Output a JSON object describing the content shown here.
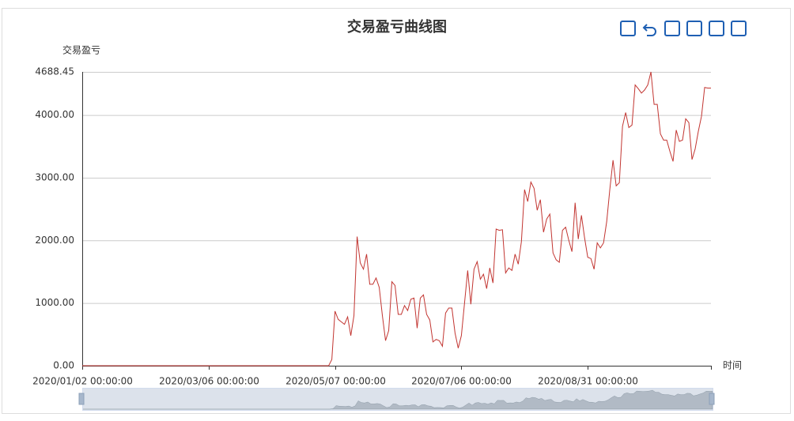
{
  "chart_data": {
    "type": "line",
    "title": "交易盈亏曲线图",
    "y_label": "交易盈亏",
    "x_label": "时间",
    "categories": [
      "2020/01/02 00:00:00",
      null,
      null,
      null,
      null,
      null,
      null,
      null,
      null,
      null,
      null,
      null,
      null,
      null,
      null,
      null,
      null,
      null,
      null,
      null,
      null,
      null,
      null,
      null,
      null,
      null,
      null,
      null,
      null,
      null,
      null,
      null,
      null,
      null,
      null,
      null,
      null,
      null,
      null,
      null,
      "2020/03/06 00:00:00",
      null,
      null,
      null,
      null,
      null,
      null,
      null,
      null,
      null,
      null,
      null,
      null,
      null,
      null,
      null,
      null,
      null,
      null,
      null,
      null,
      null,
      null,
      null,
      null,
      null,
      null,
      null,
      null,
      null,
      null,
      null,
      null,
      null,
      null,
      null,
      null,
      null,
      null,
      null,
      "2020/05/07 00:00:00",
      null,
      null,
      null,
      null,
      null,
      null,
      null,
      null,
      null,
      null,
      null,
      null,
      null,
      null,
      null,
      null,
      null,
      null,
      null,
      null,
      null,
      null,
      null,
      null,
      null,
      null,
      null,
      null,
      null,
      null,
      null,
      null,
      null,
      null,
      null,
      null,
      null,
      null,
      null,
      "2020/07/06 00:00:00",
      null,
      null,
      null,
      null,
      null,
      null,
      null,
      null,
      null,
      null,
      null,
      null,
      null,
      null,
      null,
      null,
      null,
      null,
      null,
      null,
      null,
      null,
      null,
      null,
      null,
      null,
      null,
      null,
      null,
      null,
      null,
      null,
      null,
      null,
      null,
      null,
      null,
      null,
      null,
      "2020/08/31 00:00:00",
      null,
      null,
      null,
      null,
      null,
      null,
      null,
      null,
      null,
      null,
      null,
      null,
      null,
      null,
      null,
      null,
      null,
      null,
      null,
      null,
      null,
      null,
      null,
      null,
      null,
      null,
      null,
      null,
      null,
      null,
      null,
      null,
      null,
      null,
      null,
      null,
      null,
      null,
      null
    ],
    "values": [
      0,
      0,
      0,
      0,
      0,
      0,
      0,
      0,
      0,
      0,
      0,
      0,
      0,
      0,
      0,
      0,
      0,
      0,
      0,
      0,
      0,
      0,
      0,
      0,
      0,
      0,
      0,
      0,
      0,
      0,
      0,
      0,
      0,
      0,
      0,
      0,
      0,
      0,
      0,
      0,
      0,
      0,
      0,
      0,
      0,
      0,
      0,
      0,
      0,
      0,
      0,
      0,
      0,
      0,
      0,
      0,
      0,
      0,
      0,
      0,
      0,
      0,
      0,
      0,
      0,
      0,
      0,
      0,
      0,
      0,
      0,
      0,
      0,
      0,
      0,
      0,
      0,
      0,
      0,
      100,
      870,
      740,
      700,
      660,
      780,
      480,
      800,
      2060,
      1640,
      1540,
      1780,
      1300,
      1300,
      1400,
      1250,
      800,
      400,
      560,
      1340,
      1280,
      820,
      820,
      960,
      880,
      1060,
      1080,
      600,
      1080,
      1130,
      820,
      730,
      380,
      420,
      400,
      310,
      840,
      920,
      920,
      520,
      280,
      480,
      1000,
      1520,
      980,
      1540,
      1660,
      1380,
      1460,
      1230,
      1560,
      1320,
      2180,
      2160,
      2170,
      1480,
      1560,
      1520,
      1780,
      1620,
      1980,
      2810,
      2620,
      2930,
      2830,
      2480,
      2650,
      2130,
      2340,
      2420,
      1800,
      1690,
      1650,
      2160,
      2210,
      2000,
      1820,
      2600,
      2020,
      2400,
      2040,
      1730,
      1710,
      1540,
      1960,
      1880,
      1960,
      2300,
      2820,
      3280,
      2870,
      2920,
      3820,
      4040,
      3800,
      3840,
      4480,
      4420,
      4350,
      4400,
      4480,
      4688.45,
      4170,
      4170,
      3700,
      3600,
      3600,
      3420,
      3260,
      3760,
      3580,
      3600,
      3940,
      3880,
      3290,
      3460,
      3740,
      3980,
      4440,
      4430,
      4430
    ],
    "color": "#c23531",
    "ylim": [
      0,
      4688.45
    ],
    "yticks": [
      {
        "value": 0,
        "label": "0.00"
      },
      {
        "value": 1000,
        "label": "1000.00"
      },
      {
        "value": 2000,
        "label": "2000.00"
      },
      {
        "value": 3000,
        "label": "3000.00"
      },
      {
        "value": 4000,
        "label": "4000.00"
      },
      {
        "value": 4688.45,
        "label": "4688.45"
      }
    ],
    "grid": true
  }
}
